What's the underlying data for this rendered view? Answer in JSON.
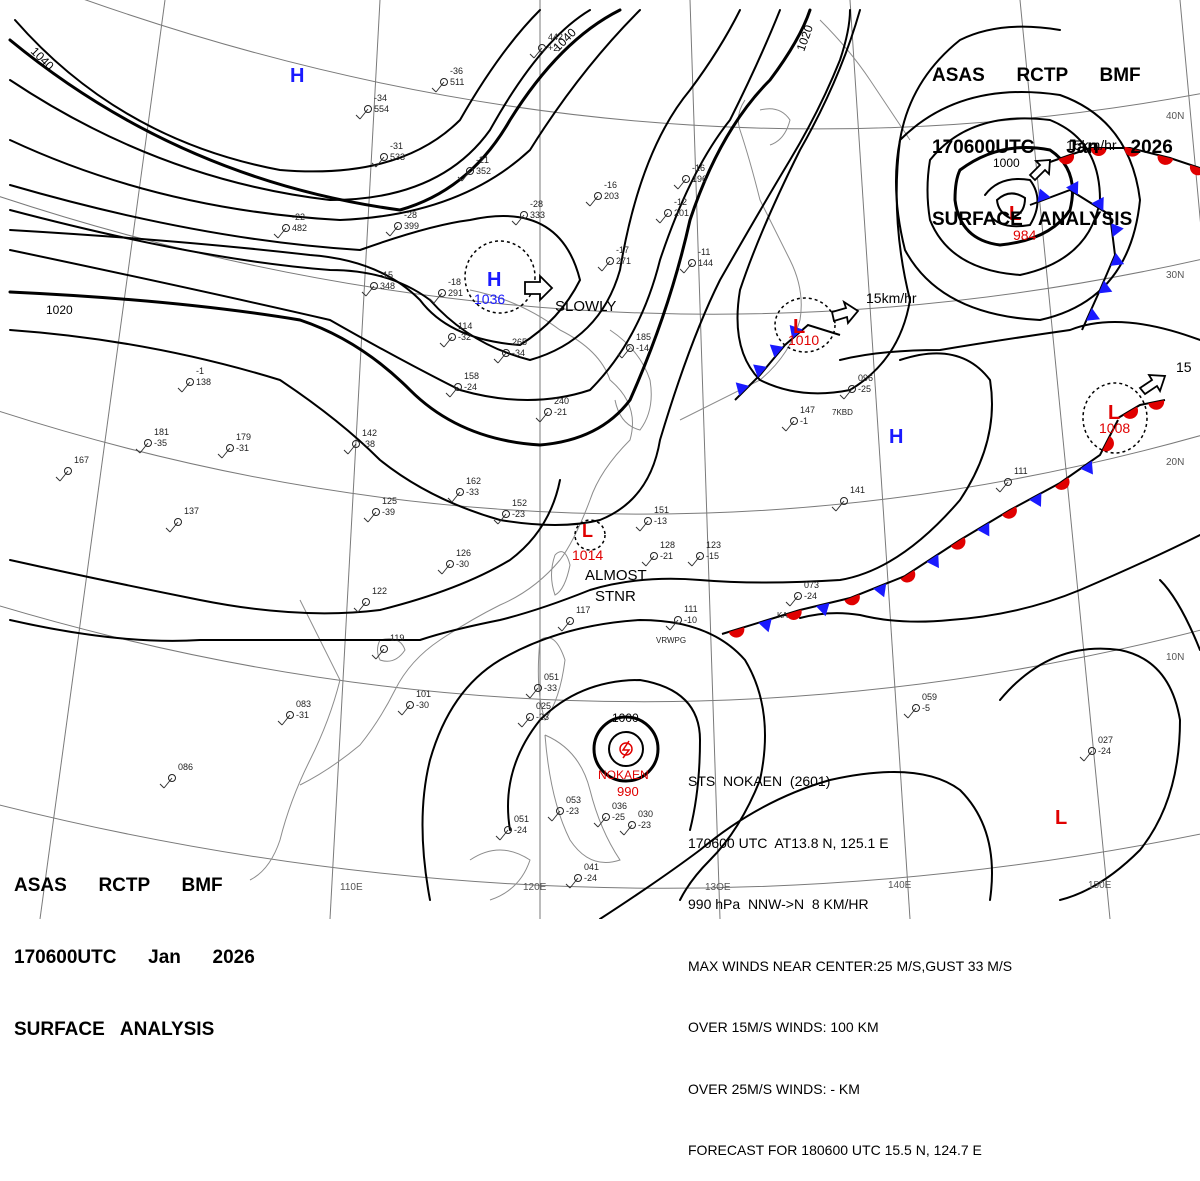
{
  "header": {
    "line1": "ASAS      RCTP      BMF",
    "line2": "170600UTC      Jan      2026",
    "line3": "SURFACE   ANALYSIS"
  },
  "storm": {
    "line1": "STS  NOKAEN  (2601)",
    "line2": "170600 UTC  AT13.8 N, 125.1 E",
    "line3": "990 hPa  NNW->N  8 KM/HR",
    "line4": "MAX WINDS NEAR CENTER:25 M/S,GUST 33 M/S",
    "line5": "OVER 15M/S WINDS: 100 KM",
    "line6": "OVER 25M/S WINDS: - KM",
    "line7": "FORECAST FOR 180600 UTC 15.5 N, 124.7 E",
    "name_label": "NOKAEN",
    "pressure": "990"
  },
  "centers": {
    "high_1036": "1036",
    "low_984": "984",
    "low_1010": "1010",
    "low_1008": "1008",
    "low_1014": "1014",
    "high_letter": "H",
    "low_letter": "L"
  },
  "motion": {
    "slowly": "SLOWLY",
    "almost": "ALMOST",
    "stnr": "STNR",
    "speed_15a": "15km/hr",
    "speed_15b": "15km/hr",
    "speed_15c": "15"
  },
  "isobar_labels": [
    "1040",
    "1040",
    "1020",
    "1020",
    "1000",
    "1000"
  ],
  "lat_labels": [
    "40N",
    "30N",
    "20N",
    "10N"
  ],
  "lon_labels": [
    "110E",
    "120E",
    "13OE",
    "140E",
    "150E"
  ],
  "stations": [
    [
      "-36",
      "511"
    ],
    [
      "-34",
      "554"
    ],
    [
      "-31",
      "533"
    ],
    [
      "-22",
      "482"
    ],
    [
      "-28",
      "399"
    ],
    [
      "-18",
      "291"
    ],
    [
      "-28",
      "333"
    ],
    [
      "-21",
      "352"
    ],
    [
      "-16",
      "203"
    ],
    [
      "-17",
      "271"
    ],
    [
      "-11",
      "144"
    ],
    [
      "-12",
      "201"
    ],
    [
      "-16",
      "196"
    ],
    [
      "-15",
      "348"
    ],
    [
      "114",
      "-32"
    ],
    [
      "265",
      "-34"
    ],
    [
      "185",
      "-14"
    ],
    [
      "-1",
      "138"
    ],
    [
      "158",
      "-24"
    ],
    [
      "240",
      "-21"
    ],
    [
      "181",
      "-35"
    ],
    [
      "179",
      "-31"
    ],
    [
      "142",
      "-38"
    ],
    [
      "162",
      "-33"
    ],
    [
      "125",
      "-39"
    ],
    [
      "152",
      "-23"
    ],
    [
      "151",
      "-13"
    ],
    [
      "128",
      "-21"
    ],
    [
      "123",
      "-15"
    ],
    [
      "126",
      "-30"
    ],
    [
      "137",
      ""
    ],
    [
      "167",
      ""
    ],
    [
      "119",
      ""
    ],
    [
      "083",
      "-31"
    ],
    [
      "101",
      "-30"
    ],
    [
      "117",
      ""
    ],
    [
      "122",
      ""
    ],
    [
      "025",
      "-23"
    ],
    [
      "051",
      "-33"
    ],
    [
      "053",
      "-23"
    ],
    [
      "036",
      "-25"
    ],
    [
      "030",
      "-23"
    ],
    [
      "051",
      "-24"
    ],
    [
      "041",
      "-24"
    ],
    [
      "086",
      ""
    ],
    [
      "111",
      "-10"
    ],
    [
      "073",
      "-24"
    ],
    [
      "059",
      "-5"
    ],
    [
      "027",
      "-24"
    ],
    [
      "096",
      "-25"
    ],
    [
      "147",
      "-1"
    ],
    [
      "141",
      ""
    ],
    [
      "111",
      ""
    ],
    [
      "442",
      "+2"
    ]
  ],
  "station_tags": [
    "VRWPG",
    "7KBD",
    "KA"
  ],
  "colors": {
    "ink": "#000000",
    "high": "#1a1aff",
    "low": "#e00000",
    "cold_front": "#1a1aff",
    "warm_front": "#e00000",
    "grid": "#7a7a7a"
  }
}
